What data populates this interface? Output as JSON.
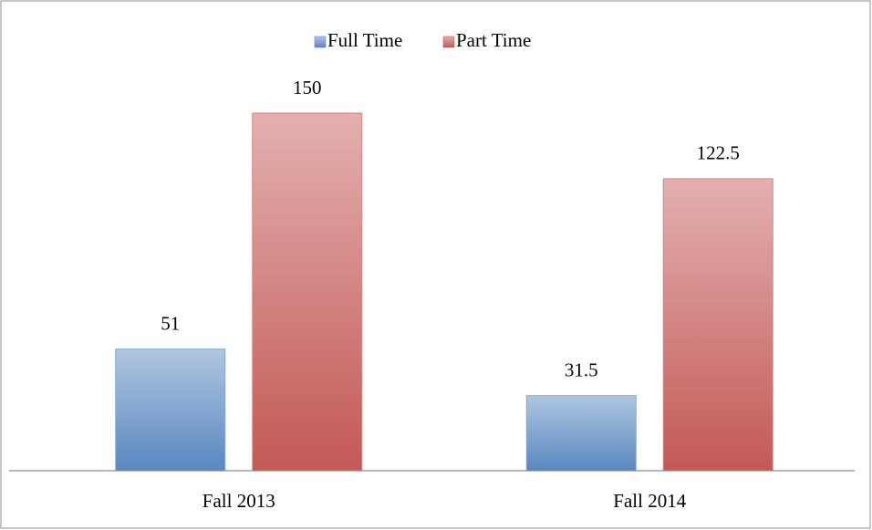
{
  "chart_data": {
    "type": "bar",
    "categories": [
      "Fall 2013",
      "Fall 2014"
    ],
    "series": [
      {
        "name": "Full Time",
        "color": "#4f81bd",
        "values": [
          51,
          31.5
        ]
      },
      {
        "name": "Part Time",
        "color": "#c0504d",
        "values": [
          150,
          122.5
        ]
      }
    ],
    "legend": "top"
  }
}
